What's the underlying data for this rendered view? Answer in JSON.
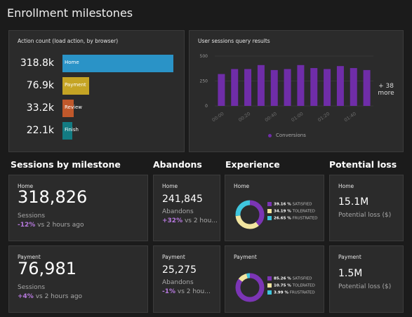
{
  "page": {
    "title": "Enrollment milestones"
  },
  "action_count": {
    "title": "Action count (load action, by browser)",
    "rows": [
      {
        "value": "318.8k",
        "label": "Home",
        "color": "#2a93c7",
        "fraction": 1.0
      },
      {
        "value": "76.9k",
        "label": "Payment",
        "color": "#c5a424",
        "fraction": 0.24
      },
      {
        "value": "33.2k",
        "label": "Review",
        "color": "#c0582b",
        "fraction": 0.104
      },
      {
        "value": "22.1k",
        "label": "Finish",
        "color": "#137b82",
        "fraction": 0.07
      }
    ]
  },
  "sessions_query": {
    "title": "User sessions query results",
    "more": "+ 38",
    "more_label": "more",
    "legend_label": "Conversions"
  },
  "chart_data": {
    "type": "bar",
    "title": "User sessions query results",
    "x": [
      "00:00",
      "00:10",
      "00:20",
      "00:30",
      "00:40",
      "00:50",
      "01:00",
      "01:10",
      "01:20",
      "01:30",
      "01:40",
      "01:50"
    ],
    "x_tick_labels": [
      "00:00",
      "00:20",
      "00:40",
      "01:00",
      "01:20",
      "01:40"
    ],
    "series": [
      {
        "name": "Conversions",
        "color": "#6f2da8",
        "values": [
          320,
          370,
          370,
          410,
          360,
          370,
          410,
          380,
          370,
          400,
          380,
          360
        ]
      }
    ],
    "y_ticks": [
      "500",
      "250",
      "0"
    ],
    "ylim": [
      0,
      500
    ],
    "grid": true,
    "legend": "bottom"
  },
  "sections": {
    "sessions": "Sessions by milestone",
    "abandons": "Abandons",
    "experience": "Experience",
    "loss": "Potential loss"
  },
  "sessions_tiles": [
    {
      "name": "Home",
      "value": "318,826",
      "label": "Sessions",
      "delta": "-12%",
      "delta_text": " vs 2 hours ago"
    },
    {
      "name": "Payment",
      "value": "76,981",
      "label": "Sessions",
      "delta": "+4%",
      "delta_text": " vs 2 hours ago"
    }
  ],
  "abandons_tiles": [
    {
      "name": "Home",
      "value": "241,845",
      "label": "Abandons",
      "delta": "+32%",
      "delta_text": " vs 2 hou..."
    },
    {
      "name": "Payment",
      "value": "25,275",
      "label": "Abandons",
      "delta": "-1%",
      "delta_text": " vs 2 hou..."
    }
  ],
  "experience_tiles": [
    {
      "name": "Home",
      "satisfied_pct": "39.16 %",
      "satisfied_label": "SATISFIED",
      "satisfied": 39.16,
      "tolerated_pct": "34.19 %",
      "tolerated_label": "TOLERATED",
      "tolerated": 34.19,
      "frustrated_pct": "26.65 %",
      "frustrated_label": "FRUSTRATED",
      "frustrated": 26.65
    },
    {
      "name": "Payment",
      "satisfied_pct": "85.26 %",
      "satisfied_label": "SATISFIED",
      "satisfied": 85.26,
      "tolerated_pct": "10.75 %",
      "tolerated_label": "TOLERATED",
      "tolerated": 10.75,
      "frustrated_pct": "3.99 %",
      "frustrated_label": "FRUSTRATED",
      "frustrated": 3.99
    }
  ],
  "experience_colors": {
    "satisfied": "#7b35b5",
    "tolerated": "#f2e5a0",
    "frustrated": "#3fc6de"
  },
  "loss_tiles": [
    {
      "name": "Home",
      "value": "15.1M",
      "label": "Potential loss ($)"
    },
    {
      "name": "Payment",
      "value": "1.5M",
      "label": "Potential loss ($)"
    }
  ]
}
